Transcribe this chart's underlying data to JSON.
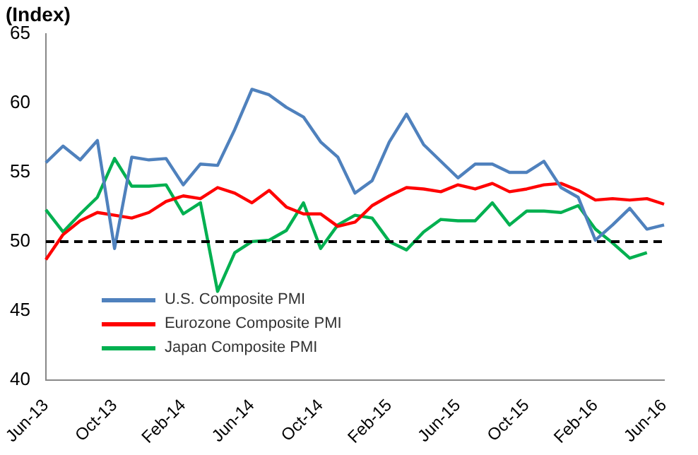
{
  "chart_data": {
    "type": "line",
    "ylabel": "(Index)",
    "categories": [
      "Jun-13",
      null,
      null,
      null,
      "Oct-13",
      null,
      null,
      null,
      "Feb-14",
      null,
      null,
      null,
      "Jun-14",
      null,
      null,
      null,
      "Oct-14",
      null,
      null,
      null,
      "Feb-15",
      null,
      null,
      null,
      "Jun-15",
      null,
      null,
      null,
      "Oct-15",
      null,
      null,
      null,
      "Feb-16",
      null,
      null,
      null,
      "Jun-16"
    ],
    "series": [
      {
        "name": "U.S. Composite PMI",
        "color": "#4f81bd",
        "values": [
          55.7,
          56.9,
          55.9,
          57.3,
          49.5,
          56.1,
          55.9,
          56.0,
          54.1,
          55.6,
          55.5,
          58.1,
          61.0,
          60.6,
          59.7,
          59.0,
          57.2,
          56.1,
          53.5,
          54.4,
          57.2,
          59.2,
          57.0,
          55.8,
          54.6,
          55.6,
          55.6,
          55.0,
          55.0,
          55.8,
          53.9,
          53.2,
          50.1,
          51.2,
          52.4,
          50.9,
          51.2
        ]
      },
      {
        "name": "Eurozone Composite PMI",
        "color": "#ff0000",
        "values": [
          48.7,
          50.5,
          51.5,
          52.1,
          51.9,
          51.7,
          52.1,
          52.9,
          53.3,
          53.1,
          53.9,
          53.5,
          52.8,
          53.7,
          52.5,
          52.0,
          52.0,
          51.1,
          51.4,
          52.6,
          53.3,
          53.9,
          53.8,
          53.6,
          54.1,
          53.8,
          54.2,
          53.6,
          53.8,
          54.1,
          54.2,
          53.7,
          53.0,
          53.1,
          53.0,
          53.1,
          52.7
        ]
      },
      {
        "name": "Japan Composite PMI",
        "color": "#00b050",
        "values": [
          52.3,
          50.7,
          52.0,
          53.2,
          56.0,
          54.0,
          54.0,
          54.1,
          52.0,
          52.8,
          46.4,
          49.2,
          50.0,
          50.1,
          50.8,
          52.8,
          49.5,
          51.2,
          51.9,
          51.7,
          50.0,
          49.4,
          50.7,
          51.6,
          51.5,
          51.5,
          52.8,
          51.2,
          52.2,
          52.2,
          52.1,
          52.6,
          50.9,
          49.9,
          48.8,
          49.2,
          null
        ]
      }
    ],
    "ylim": [
      40,
      65
    ],
    "yticks": [
      40,
      45,
      50,
      55,
      60,
      65
    ],
    "grid": false,
    "legend": "bottom left",
    "marker": "none",
    "line_style": "solid",
    "ref_lines": [
      {
        "axis": "y",
        "value": 50,
        "color": "#000000",
        "line_style": "dashed"
      }
    ]
  }
}
